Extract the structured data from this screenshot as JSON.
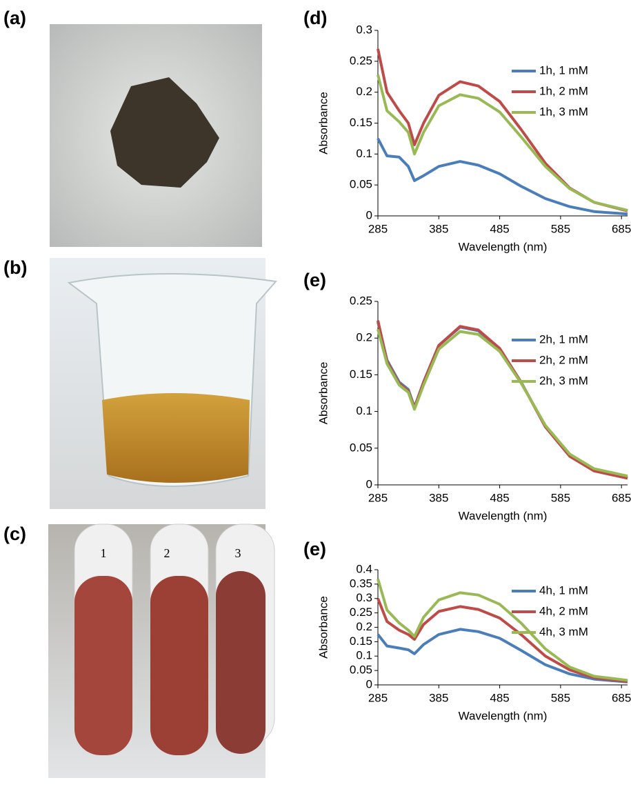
{
  "panel_labels": [
    "(a)",
    "(b)",
    "(c)",
    "(d)",
    "(e)",
    "(e)"
  ],
  "tube_labels": [
    "1",
    "2",
    "3"
  ],
  "chart_data": [
    {
      "type": "line",
      "x_label": "Wavelength (nm)",
      "y_label": "Absorbance",
      "x": [
        285,
        300,
        320,
        335,
        345,
        360,
        385,
        420,
        450,
        485,
        520,
        560,
        600,
        640,
        695
      ],
      "xlim": [
        285,
        695
      ],
      "xticks": [
        285,
        385,
        485,
        585,
        685
      ],
      "ylim": [
        0,
        0.3
      ],
      "yticks": [
        0,
        0.05,
        0.1,
        0.15,
        0.2,
        0.25,
        0.3
      ],
      "series": [
        {
          "name": "1h, 1 mM",
          "color": "#4a7ebb",
          "values": [
            0.125,
            0.097,
            0.095,
            0.08,
            0.057,
            0.065,
            0.08,
            0.088,
            0.082,
            0.068,
            0.048,
            0.028,
            0.015,
            0.007,
            0.003
          ]
        },
        {
          "name": "1h, 2 mM",
          "color": "#be4b48",
          "values": [
            0.27,
            0.2,
            0.17,
            0.15,
            0.115,
            0.15,
            0.195,
            0.217,
            0.21,
            0.185,
            0.14,
            0.085,
            0.045,
            0.022,
            0.008
          ]
        },
        {
          "name": "1h, 3 mM",
          "color": "#98b954",
          "values": [
            0.228,
            0.17,
            0.152,
            0.135,
            0.1,
            0.135,
            0.178,
            0.196,
            0.19,
            0.168,
            0.128,
            0.08,
            0.044,
            0.022,
            0.009
          ]
        }
      ]
    },
    {
      "type": "line",
      "x_label": "Wavelength (nm)",
      "y_label": "Absorbance",
      "x": [
        285,
        300,
        320,
        335,
        345,
        360,
        385,
        420,
        450,
        485,
        520,
        560,
        600,
        640,
        695
      ],
      "xlim": [
        285,
        695
      ],
      "xticks": [
        285,
        385,
        485,
        585,
        685
      ],
      "ylim": [
        0,
        0.25
      ],
      "yticks": [
        0,
        0.05,
        0.1,
        0.15,
        0.2,
        0.25
      ],
      "series": [
        {
          "name": "2h, 1 mM",
          "color": "#4a7ebb",
          "values": [
            0.222,
            0.17,
            0.14,
            0.13,
            0.106,
            0.14,
            0.19,
            0.215,
            0.21,
            0.185,
            0.14,
            0.08,
            0.04,
            0.02,
            0.01
          ]
        },
        {
          "name": "2h, 2 mM",
          "color": "#be4b48",
          "values": [
            0.224,
            0.168,
            0.138,
            0.128,
            0.105,
            0.14,
            0.19,
            0.216,
            0.211,
            0.186,
            0.14,
            0.079,
            0.039,
            0.019,
            0.009
          ]
        },
        {
          "name": "2h, 3 mM",
          "color": "#98b954",
          "values": [
            0.212,
            0.165,
            0.136,
            0.126,
            0.103,
            0.136,
            0.185,
            0.209,
            0.205,
            0.182,
            0.139,
            0.081,
            0.042,
            0.022,
            0.012
          ]
        }
      ]
    },
    {
      "type": "line",
      "x_label": "Wavelength (nm)",
      "y_label": "Absorbance",
      "x": [
        285,
        300,
        320,
        335,
        345,
        360,
        385,
        420,
        450,
        485,
        520,
        560,
        600,
        640,
        695
      ],
      "xlim": [
        285,
        695
      ],
      "xticks": [
        285,
        385,
        485,
        585,
        685
      ],
      "ylim": [
        0,
        0.4
      ],
      "yticks": [
        0,
        0.05,
        0.1,
        0.15,
        0.2,
        0.25,
        0.3,
        0.35,
        0.4
      ],
      "series": [
        {
          "name": "4h, 1 mM",
          "color": "#4a7ebb",
          "values": [
            0.175,
            0.135,
            0.128,
            0.122,
            0.108,
            0.14,
            0.175,
            0.193,
            0.185,
            0.162,
            0.12,
            0.07,
            0.038,
            0.02,
            0.01
          ]
        },
        {
          "name": "4h, 2 mM",
          "color": "#be4b48",
          "values": [
            0.3,
            0.22,
            0.19,
            0.175,
            0.158,
            0.21,
            0.255,
            0.272,
            0.262,
            0.232,
            0.175,
            0.1,
            0.052,
            0.025,
            0.012
          ]
        },
        {
          "name": "4h, 3 mM",
          "color": "#98b954",
          "values": [
            0.368,
            0.26,
            0.215,
            0.19,
            0.168,
            0.235,
            0.295,
            0.32,
            0.312,
            0.28,
            0.215,
            0.125,
            0.062,
            0.03,
            0.016
          ]
        }
      ]
    }
  ]
}
